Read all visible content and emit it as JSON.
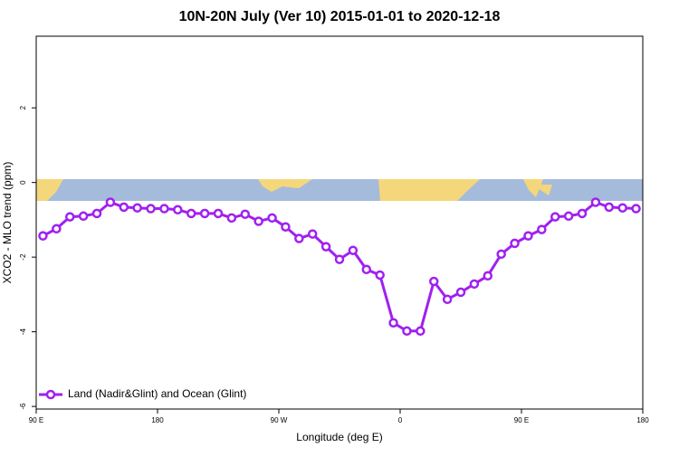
{
  "chart_data": {
    "type": "line",
    "title": "10N-20N July (Ver 10)   2015-01-01 to 2020-12-18",
    "x_label": "Longitude (deg E)",
    "y_label": "XCO2 - MLO trend (ppm)",
    "x": [
      95,
      105,
      115,
      125,
      135,
      145,
      155,
      165,
      175,
      185,
      195,
      205,
      215,
      225,
      235,
      245,
      255,
      265,
      275,
      285,
      295,
      305,
      315,
      325,
      335,
      345,
      355,
      365,
      375,
      385,
      395,
      405,
      415,
      425,
      435,
      445,
      455,
      465,
      475,
      485,
      495,
      505,
      515,
      525,
      535
    ],
    "series": [
      {
        "name": "Land (Nadir&Glint) and Ocean (Glint)",
        "color": "#a020f0",
        "values": [
          -1.43,
          -1.24,
          -0.92,
          -0.9,
          -0.83,
          -0.53,
          -0.66,
          -0.68,
          -0.7,
          -0.7,
          -0.73,
          -0.83,
          -0.83,
          -0.83,
          -0.95,
          -0.85,
          -1.04,
          -0.95,
          -1.19,
          -1.5,
          -1.38,
          -1.72,
          -2.06,
          -1.82,
          -2.33,
          -2.48,
          -3.76,
          -3.98,
          -3.98,
          -2.65,
          -3.13,
          -2.94,
          -2.72,
          -2.5,
          -1.92,
          -1.63,
          -1.43,
          -1.26,
          -0.92,
          -0.9,
          -0.83,
          -0.53,
          -0.66,
          -0.68,
          -0.7
        ]
      }
    ],
    "xlim": [
      90,
      540
    ],
    "xticks": [
      {
        "value": 90,
        "label": "90 E"
      },
      180,
      {
        "value": 270,
        "label": "90 W"
      },
      {
        "value": 360,
        "label": "0"
      },
      {
        "value": 450,
        "label": "90 E"
      },
      {
        "value": 540,
        "label": "180"
      }
    ],
    "ylim": [
      -6.07,
      3.92
    ],
    "yticks": [
      -6,
      -4,
      -2,
      0,
      2
    ],
    "legend": "bottom-left"
  }
}
